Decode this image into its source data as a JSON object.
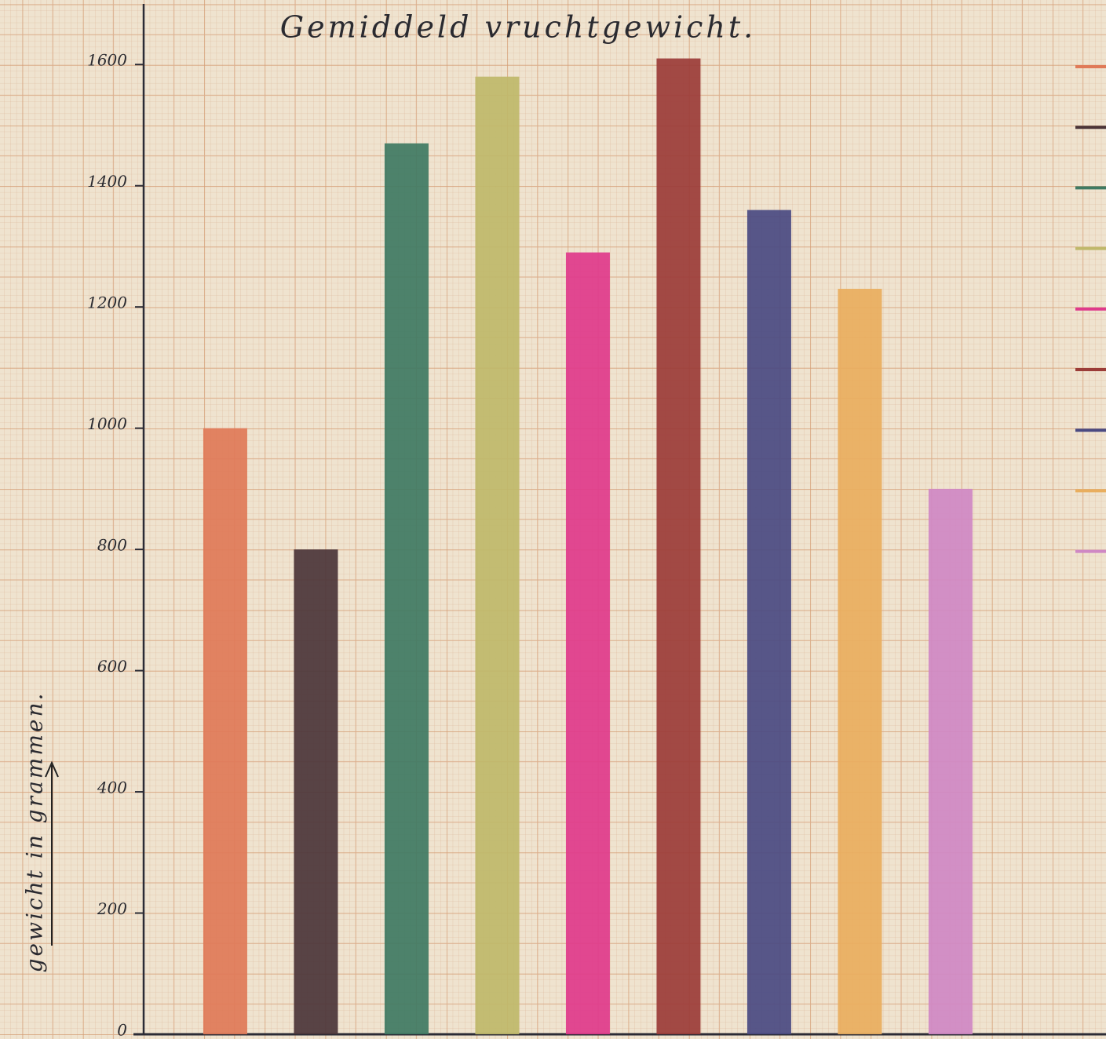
{
  "chart_data": {
    "type": "bar",
    "title": "Gemiddeld vruchtgewicht.",
    "y_label": "gewicht in grammen.",
    "categories": [
      null,
      null,
      null,
      null,
      null,
      null,
      null,
      null,
      null
    ],
    "values": [
      1000,
      800,
      1470,
      1580,
      1290,
      1610,
      1360,
      1230,
      900
    ],
    "colors": [
      "#e07a58",
      "#4b3539",
      "#3f7a63",
      "#bfb86a",
      "#df3a8b",
      "#9b3c38",
      "#4a4a82",
      "#e9ae5e",
      "#cf88c4"
    ],
    "ylim": [
      0,
      1700
    ],
    "yticks": [
      0,
      200,
      400,
      600,
      800,
      1000,
      1200,
      1400,
      1600
    ],
    "grid": true
  }
}
